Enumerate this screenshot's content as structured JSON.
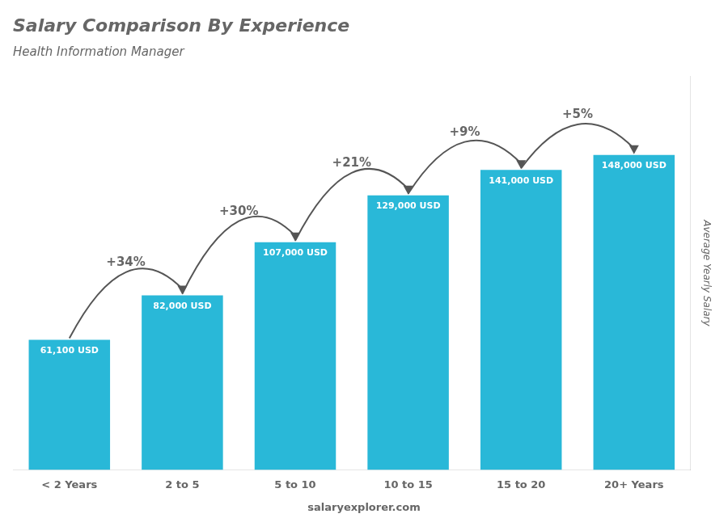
{
  "chart_data": {
    "type": "bar",
    "title": "Salary Comparison By Experience",
    "subtitle": "Health Information Manager",
    "categories": [
      "< 2 Years",
      "2 to 5",
      "5 to 10",
      "10 to 15",
      "15 to 20",
      "20+ Years"
    ],
    "values": [
      61100,
      82000,
      107000,
      129000,
      141000,
      148000
    ],
    "value_labels": [
      "61,100 USD",
      "82,000 USD",
      "107,000 USD",
      "129,000 USD",
      "141,000 USD",
      "148,000 USD"
    ],
    "data_labels": true,
    "annotations": [
      "+34%",
      "+30%",
      "+21%",
      "+9%",
      "+5%"
    ],
    "ylabel": "Average Yearly Salary",
    "footer": "salaryexplorer.com",
    "color": "#29b8d8",
    "ylim": [
      0,
      185000
    ],
    "grid": false,
    "tick_labels": "x"
  }
}
